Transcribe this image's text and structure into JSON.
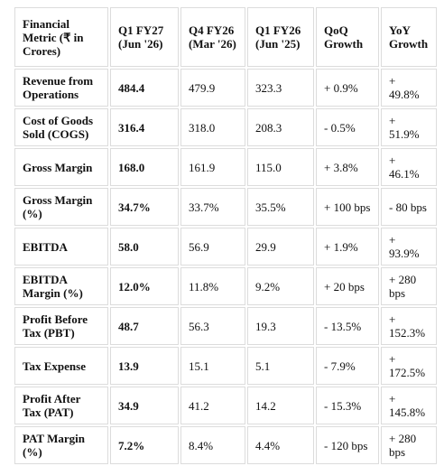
{
  "table": {
    "header": [
      "Financial Metric (₹ in Crores)",
      "Q1 FY27 (Jun '26)",
      "Q4 FY26 (Mar '26)",
      "Q1 FY26 (Jun '25)",
      "QoQ Growth",
      "YoY Growth"
    ],
    "rows": [
      [
        "Revenue from Operations",
        "484.4",
        "479.9",
        "323.3",
        "+ 0.9%",
        "+ 49.8%"
      ],
      [
        "Cost of Goods Sold (COGS)",
        "316.4",
        "318.0",
        "208.3",
        "- 0.5%",
        "+ 51.9%"
      ],
      [
        "Gross Margin",
        "168.0",
        "161.9",
        "115.0",
        "+ 3.8%",
        "+ 46.1%"
      ],
      [
        "Gross Margin (%)",
        "34.7%",
        "33.7%",
        "35.5%",
        "+ 100 bps",
        "- 80 bps"
      ],
      [
        "EBITDA",
        "58.0",
        "56.9",
        "29.9",
        "+ 1.9%",
        "+ 93.9%"
      ],
      [
        "EBITDA Margin (%)",
        "12.0%",
        "11.8%",
        "9.2%",
        "+ 20 bps",
        "+ 280 bps"
      ],
      [
        "Profit Before Tax (PBT)",
        "48.7",
        "56.3",
        "19.3",
        "- 13.5%",
        "+ 152.3%"
      ],
      [
        "Tax Expense",
        "13.9",
        "15.1",
        "5.1",
        "- 7.9%",
        "+ 172.5%"
      ],
      [
        "Profit After Tax (PAT)",
        "34.9",
        "41.2",
        "14.2",
        "- 15.3%",
        "+ 145.8%"
      ],
      [
        "PAT Margin (%)",
        "7.2%",
        "8.4%",
        "4.4%",
        "- 120 bps",
        "+ 280 bps"
      ]
    ]
  }
}
